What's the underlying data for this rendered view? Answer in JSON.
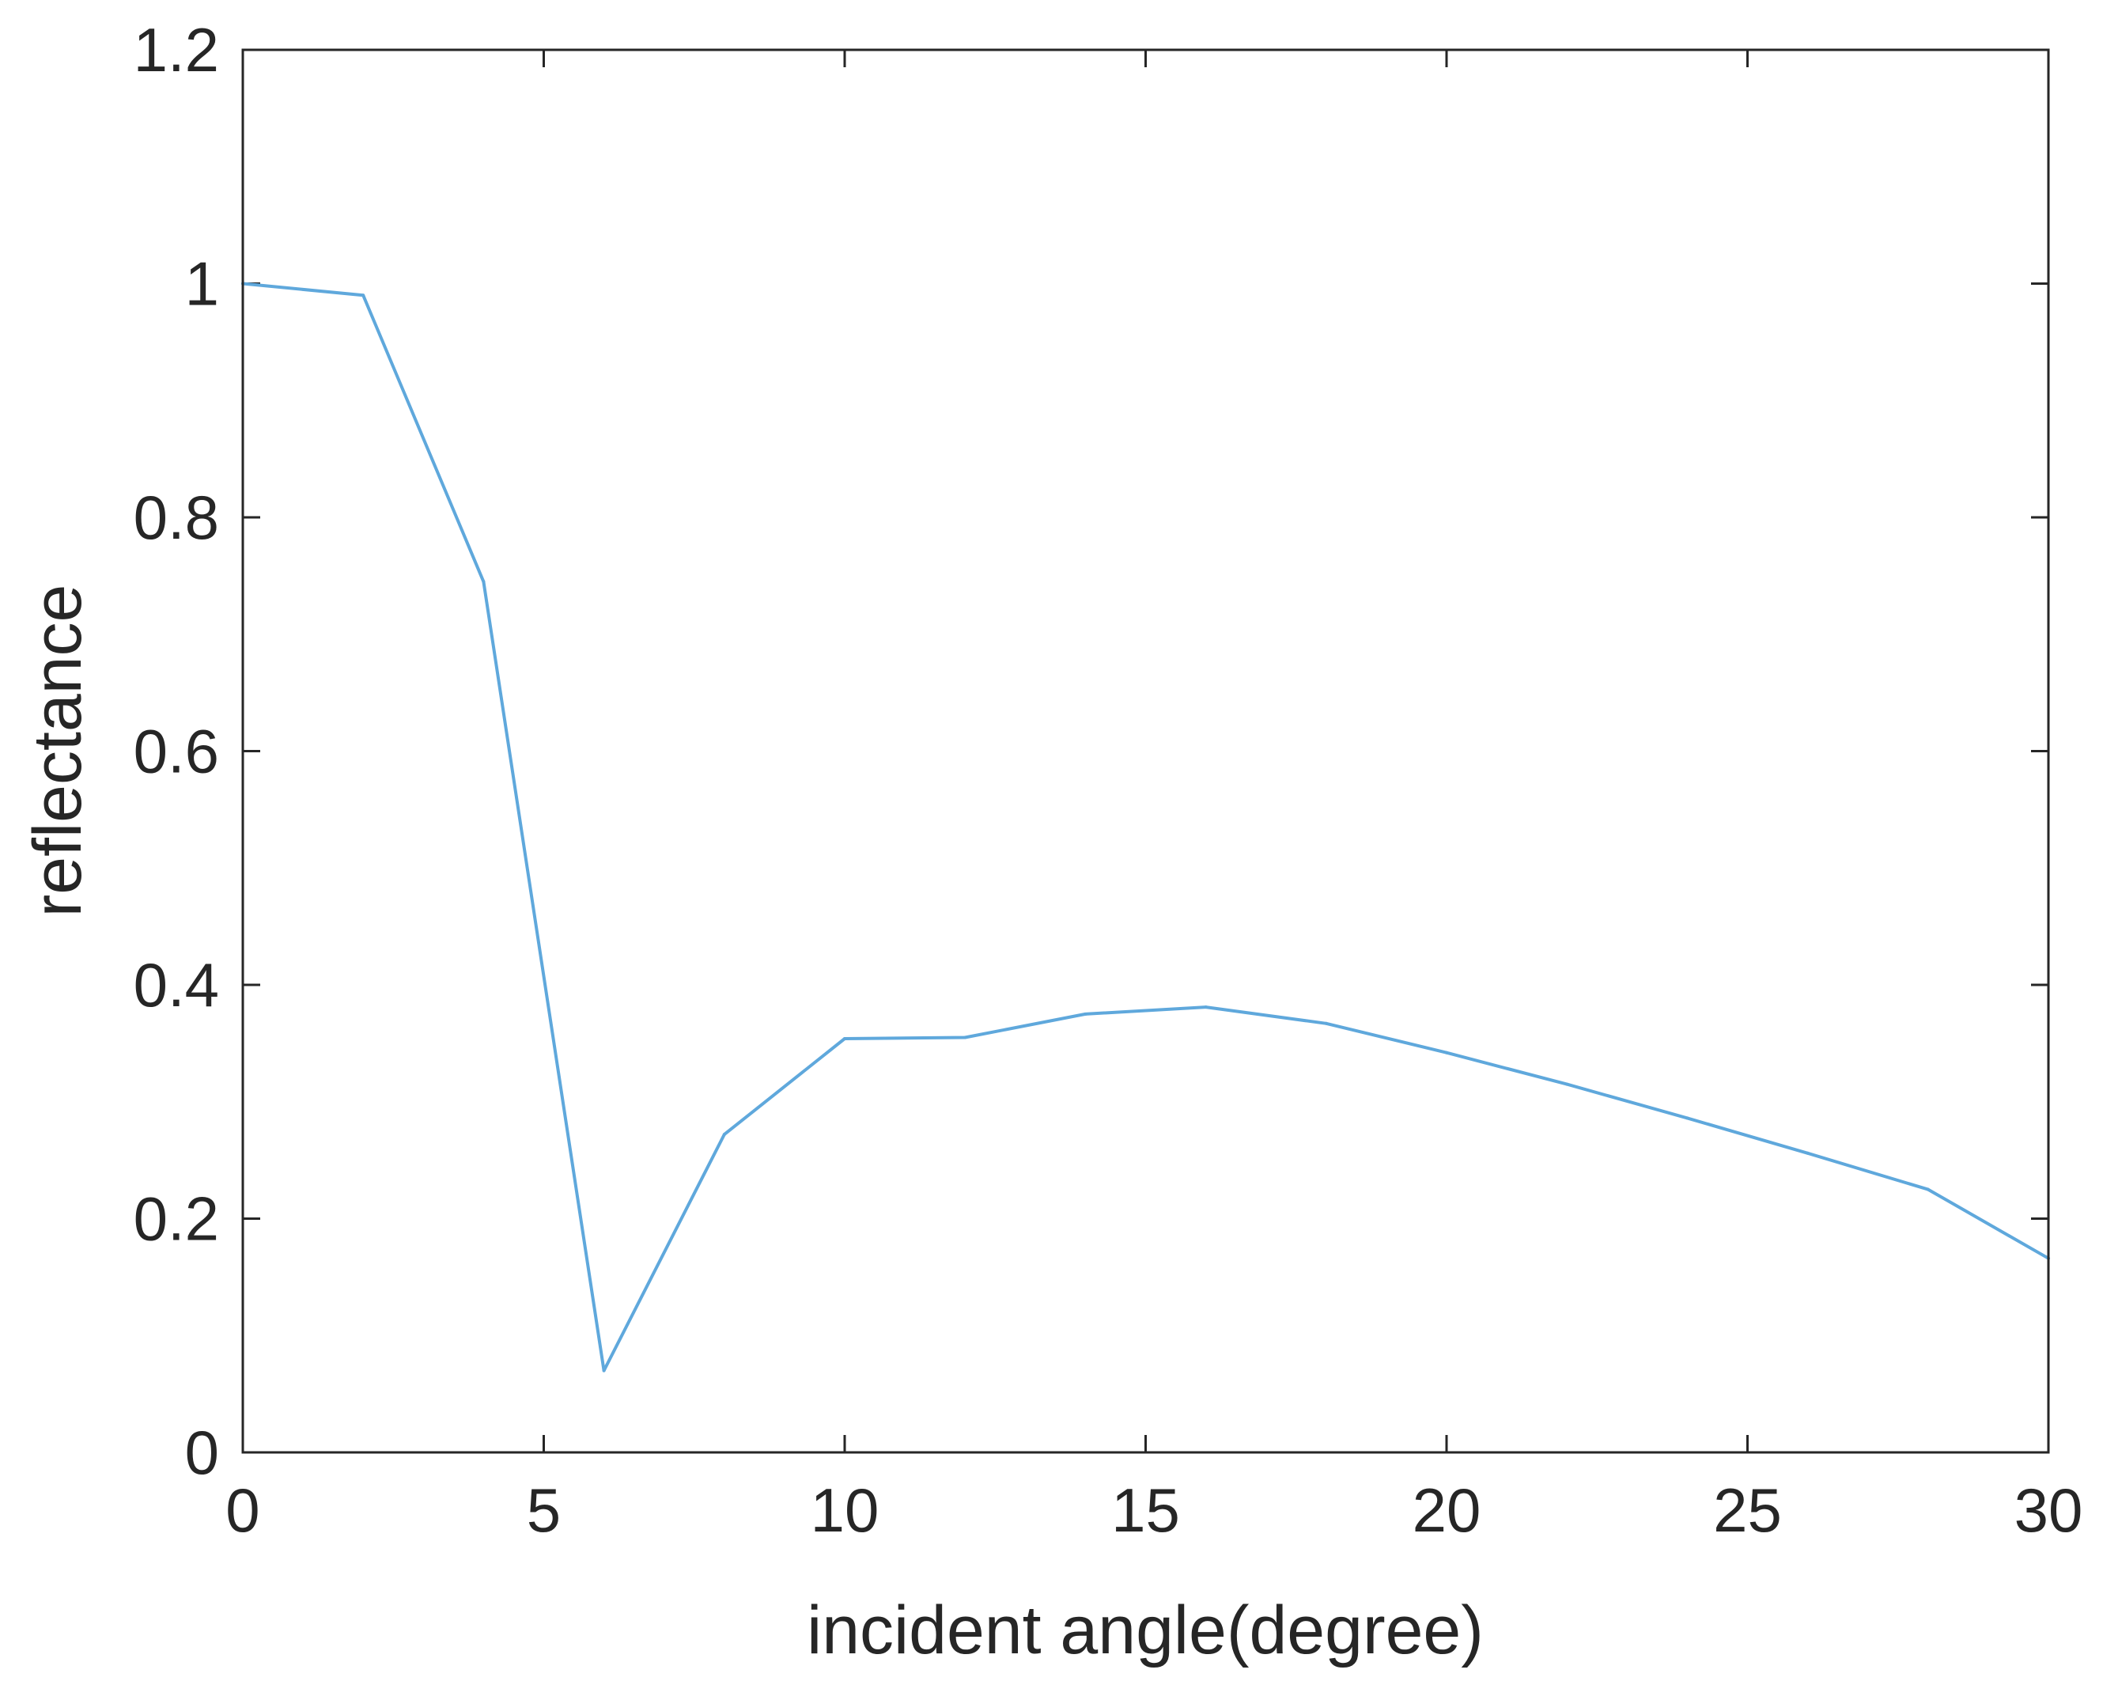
{
  "chart_data": {
    "type": "line",
    "title": "",
    "xlabel": "incident angle(degree)",
    "ylabel": "reflectance",
    "xlim": [
      0,
      30
    ],
    "ylim": [
      0,
      1.2
    ],
    "xticks": [
      0,
      5,
      10,
      15,
      20,
      25,
      30
    ],
    "xtick_labels": [
      "0",
      "5",
      "10",
      "15",
      "20",
      "25",
      "30"
    ],
    "yticks": [
      0,
      0.2,
      0.4,
      0.6,
      0.8,
      1.0,
      1.2
    ],
    "ytick_labels": [
      "0",
      "0.2",
      "0.4",
      "0.6",
      "0.8",
      "1",
      "1.2"
    ],
    "grid": false,
    "box": true,
    "series": [
      {
        "color": "#5fa8dc",
        "x": [
          0,
          2,
          4,
          6,
          8,
          10,
          12,
          14,
          16,
          18,
          20,
          22,
          24,
          26,
          28,
          30
        ],
        "y": [
          1.0,
          0.99,
          0.745,
          0.07,
          0.272,
          0.354,
          0.355,
          0.375,
          0.381,
          0.367,
          0.342,
          0.315,
          0.286,
          0.256,
          0.225,
          0.166
        ]
      }
    ]
  }
}
